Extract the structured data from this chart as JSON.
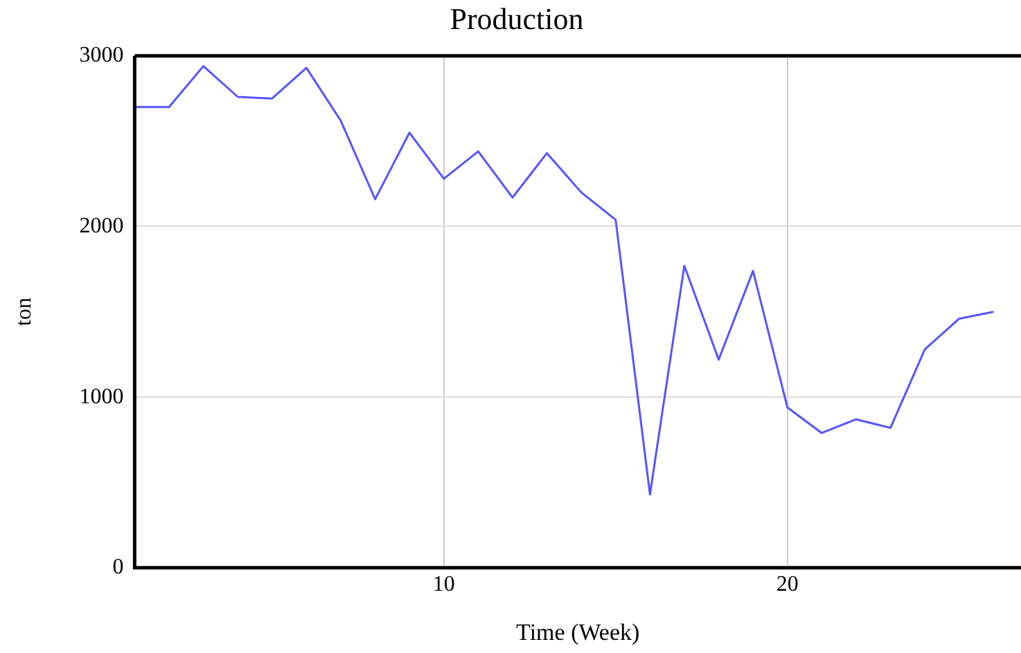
{
  "chart_data": {
    "type": "line",
    "title": "Production",
    "xlabel": "Time (Week)",
    "ylabel": "ton",
    "x": [
      1,
      2,
      3,
      4,
      5,
      6,
      7,
      8,
      9,
      10,
      11,
      12,
      13,
      14,
      15,
      16,
      17,
      18,
      19,
      20,
      21,
      22,
      23,
      24,
      25,
      26
    ],
    "series": [
      {
        "color": "#5555ff",
        "values": [
          2700,
          2700,
          2940,
          2760,
          2750,
          2930,
          2620,
          2160,
          2550,
          2280,
          2440,
          2170,
          2430,
          2200,
          2040,
          430,
          1770,
          1220,
          1740,
          940,
          790,
          870,
          820,
          1280,
          1460,
          1500
        ]
      }
    ],
    "xlim": [
      1,
      26.8
    ],
    "xticks": [
      10,
      20
    ],
    "ylim": [
      0,
      3000
    ],
    "yticks": [
      0,
      1000,
      2000,
      3000
    ],
    "grid": true,
    "legend": false,
    "marker": "none",
    "line_style": "solid"
  }
}
